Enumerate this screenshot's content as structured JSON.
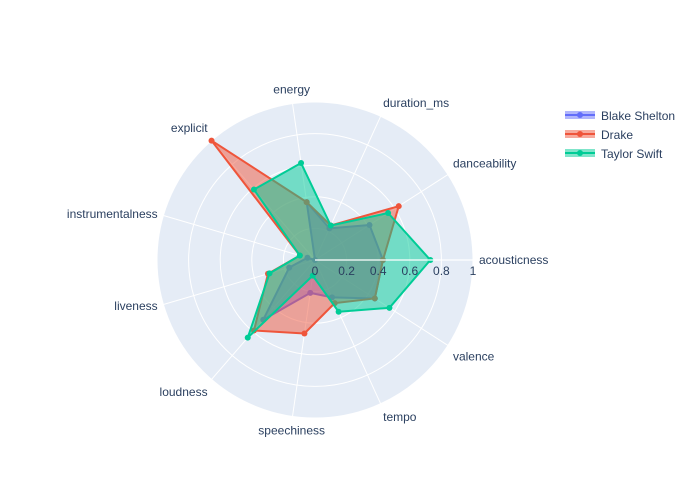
{
  "chart_data": {
    "type": "radar",
    "axes": [
      "acousticness",
      "danceability",
      "duration_ms",
      "energy",
      "explicit",
      "instrumentalness",
      "liveness",
      "loudness",
      "speechiness",
      "tempo",
      "valence"
    ],
    "radial_ticks": [
      "0",
      "0.2",
      "0.4",
      "0.6",
      "0.8",
      "1"
    ],
    "radial_range": [
      0,
      1
    ],
    "grid": true,
    "legend_placement": "top-right",
    "series": [
      {
        "name": "Blake Shelton",
        "color": "#636efa",
        "values": [
          0.43,
          0.41,
          0.22,
          0.37,
          0.0,
          0.05,
          0.17,
          0.5,
          0.21,
          0.26,
          0.45
        ]
      },
      {
        "name": "Drake",
        "color": "#ef553b",
        "values": [
          0.43,
          0.63,
          0.24,
          0.37,
          1.0,
          0.1,
          0.31,
          0.59,
          0.47,
          0.3,
          0.45
        ]
      },
      {
        "name": "Taylor Swift",
        "color": "#00cc96",
        "values": [
          0.73,
          0.55,
          0.24,
          0.62,
          0.59,
          0.1,
          0.3,
          0.65,
          0.1,
          0.36,
          0.56
        ]
      }
    ]
  }
}
